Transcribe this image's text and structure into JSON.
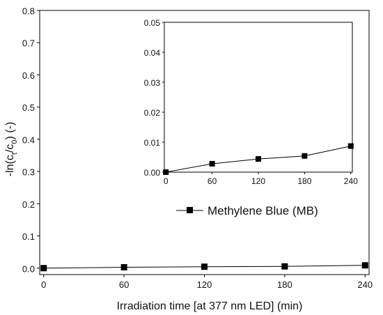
{
  "chart_data": [
    {
      "type": "line",
      "x": [
        0,
        60,
        120,
        180,
        240
      ],
      "series": [
        {
          "name": "Methylene Blue (MB)",
          "values": [
            0.0,
            0.0028,
            0.0044,
            0.0054,
            0.0087
          ]
        }
      ],
      "xlim": [
        -3,
        243
      ],
      "ylim": [
        -0.02,
        0.8
      ],
      "xticks": [
        "0",
        "60",
        "120",
        "180",
        "240"
      ],
      "yticks": [
        "0.0",
        "0.1",
        "0.2",
        "0.3",
        "0.4",
        "0.5",
        "0.6",
        "0.7",
        "0.8"
      ],
      "xlabel": "Irradiation time [at 377 nm LED] (min)",
      "ylabel": "-ln(c_t/c_0) (-)",
      "marker": "square",
      "color": "#000000"
    },
    {
      "type": "line",
      "role": "inset",
      "x": [
        0,
        60,
        120,
        180,
        240
      ],
      "series": [
        {
          "name": "Methylene Blue (MB)",
          "values": [
            0.0,
            0.0028,
            0.0044,
            0.0054,
            0.0087
          ]
        }
      ],
      "xlim": [
        -2,
        242
      ],
      "ylim": [
        0,
        0.05
      ],
      "xticks": [
        "0",
        "60",
        "120",
        "180",
        "240"
      ],
      "yticks": [
        "0.00",
        "0.01",
        "0.02",
        "0.03",
        "0.04",
        "0.05"
      ],
      "legend": {
        "label": "Methylene Blue (MB)"
      },
      "marker": "square",
      "color": "#000000"
    }
  ],
  "ylabel_parts": {
    "pre": "-ln(c",
    "sub1": "t",
    "mid": "/c",
    "sub2": "0",
    "post": ") (-)"
  }
}
